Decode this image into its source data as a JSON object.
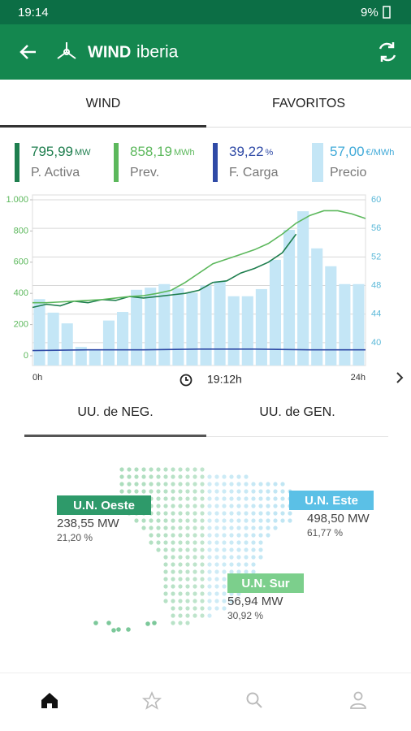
{
  "status_bar": {
    "time": "19:14",
    "battery": "9%"
  },
  "app_bar": {
    "brand_bold": "WIND",
    "brand_light": "iberia"
  },
  "tabs": [
    "WIND",
    "FAVORITOS"
  ],
  "summary": [
    {
      "value": "795,99",
      "unit": "MW"
    },
    {
      "value": "858,19",
      "unit": "MWh"
    },
    {
      "value": "39,22",
      "unit": "%"
    },
    {
      "value": "57,00",
      "unit": "€/MWh"
    }
  ],
  "chart_data": {
    "type": "bar",
    "time_label": "19:12h",
    "xlim": [
      0,
      24
    ],
    "xticks": [
      {
        "value": 0,
        "label": "0h"
      },
      {
        "value": 24,
        "label": "24h"
      }
    ],
    "ylim": [
      -62.5,
      1000
    ],
    "yticks": [
      {
        "value": 1000,
        "label": "1.000"
      },
      800,
      600,
      400,
      200,
      0
    ],
    "y2lim": [
      36.8,
      60
    ],
    "y2ticks": [
      60,
      56,
      52,
      48,
      44,
      40
    ],
    "grid": true,
    "series": [
      {
        "name": "P. Activa",
        "type": "line",
        "color": "#1e7e4e",
        "x": [
          0,
          1,
          2,
          3,
          4,
          5,
          6,
          7,
          8,
          9,
          10,
          11,
          12,
          13,
          14,
          15,
          16,
          17,
          18,
          19
        ],
        "values": [
          310,
          330,
          320,
          350,
          340,
          360,
          355,
          380,
          370,
          380,
          390,
          400,
          420,
          470,
          480,
          530,
          560,
          600,
          660,
          780
        ]
      },
      {
        "name": "Prev.",
        "type": "line",
        "color": "#5cb85c",
        "x": [
          0,
          1,
          2,
          3,
          4,
          5,
          6,
          7,
          8,
          9,
          10,
          11,
          12,
          13,
          14,
          15,
          16,
          17,
          18,
          19,
          20,
          21,
          22,
          23,
          24
        ],
        "values": [
          340,
          340,
          345,
          350,
          355,
          360,
          370,
          380,
          385,
          400,
          420,
          470,
          530,
          590,
          620,
          650,
          680,
          720,
          780,
          850,
          900,
          930,
          930,
          910,
          880
        ]
      },
      {
        "name": "F. Carga",
        "type": "line",
        "axis": "y2",
        "color": "#2f4aa6",
        "x": [
          0,
          4,
          8,
          12,
          16,
          20,
          24
        ],
        "values": [
          38.9,
          39.0,
          39.0,
          39.1,
          39.1,
          39.0,
          39.0
        ]
      },
      {
        "name": "Precio",
        "type": "bar",
        "axis": "y2",
        "color": "#c4e6f6",
        "x": [
          0.5,
          1.5,
          2.5,
          3.5,
          4.5,
          5.5,
          6.5,
          7.5,
          8.5,
          9.5,
          10.5,
          11.5,
          12.5,
          13.5,
          14.5,
          15.5,
          16.5,
          17.5,
          18.5,
          19.5,
          20.5,
          21.5,
          22.5,
          23.5
        ],
        "values": [
          46.1,
          44.2,
          42.7,
          39.4,
          38.9,
          43.1,
          44.3,
          47.4,
          47.7,
          48.2,
          47.6,
          47.0,
          48.0,
          48.6,
          46.5,
          46.5,
          47.5,
          51.6,
          55.8,
          58.4,
          53.2,
          50.7,
          48.2,
          48.2
        ]
      }
    ]
  },
  "sub_tabs": [
    "UU. de NEG.",
    "UU. de GEN."
  ],
  "regions": [
    {
      "name": "U.N. Oeste",
      "power": "238,55 MW",
      "share": "21,20 %"
    },
    {
      "name": "U.N. Este",
      "power": "498,50 MW",
      "share": "61,77 %"
    },
    {
      "name": "U.N. Sur",
      "power": "56,94 MW",
      "share": "30,92 %"
    }
  ]
}
